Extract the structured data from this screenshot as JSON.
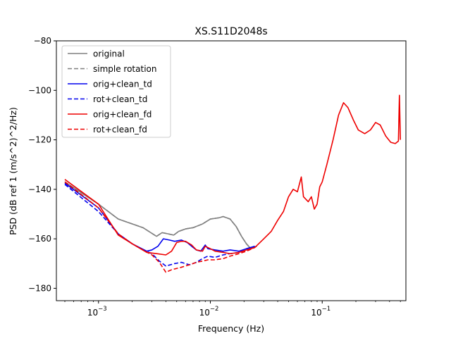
{
  "chart_data": {
    "type": "line",
    "title": "XS.S11D2048s",
    "xlabel": "Frequency (Hz)",
    "ylabel": "PSD (dB ref 1 (m/s^2)^2/Hz)",
    "xscale": "log",
    "xlim": [
      0.00042,
      0.56
    ],
    "ylim": [
      -185,
      -80
    ],
    "x_ticks": [
      {
        "value": 0.001,
        "base": "10",
        "exp": "−3"
      },
      {
        "value": 0.01,
        "base": "10",
        "exp": "−2"
      },
      {
        "value": 0.1,
        "base": "10",
        "exp": "−1"
      }
    ],
    "y_ticks": [
      {
        "value": -80,
        "label": "−80"
      },
      {
        "value": -100,
        "label": "−100"
      },
      {
        "value": -120,
        "label": "−120"
      },
      {
        "value": -140,
        "label": "−140"
      },
      {
        "value": -160,
        "label": "−160"
      },
      {
        "value": -180,
        "label": "−180"
      }
    ],
    "grid": false,
    "legend_position": "top-left",
    "series": [
      {
        "name": "original",
        "color": "#808080",
        "dash": "solid",
        "points": [
          [
            0.0005,
            -137
          ],
          [
            0.001,
            -146
          ],
          [
            0.0015,
            -152
          ],
          [
            0.0025,
            -155.5
          ],
          [
            0.0033,
            -159
          ],
          [
            0.0037,
            -157.5
          ],
          [
            0.0042,
            -158
          ],
          [
            0.0047,
            -158.5
          ],
          [
            0.0052,
            -157
          ],
          [
            0.006,
            -156
          ],
          [
            0.007,
            -155.5
          ],
          [
            0.0085,
            -154
          ],
          [
            0.01,
            -152
          ],
          [
            0.012,
            -151.5
          ],
          [
            0.013,
            -151
          ],
          [
            0.015,
            -152
          ],
          [
            0.017,
            -155
          ],
          [
            0.019,
            -159
          ],
          [
            0.021,
            -162
          ],
          [
            0.023,
            -164
          ],
          [
            0.026,
            -163
          ]
        ]
      },
      {
        "name": "simple rotation",
        "color": "#808080",
        "dash": "dashed",
        "points": [
          [
            0.0005,
            -137
          ],
          [
            0.001,
            -146
          ],
          [
            0.0015,
            -152
          ],
          [
            0.0025,
            -155.5
          ],
          [
            0.0033,
            -159
          ],
          [
            0.0037,
            -157.5
          ],
          [
            0.0042,
            -158
          ],
          [
            0.0047,
            -158.5
          ],
          [
            0.0052,
            -157
          ],
          [
            0.006,
            -156
          ],
          [
            0.007,
            -155.5
          ],
          [
            0.0085,
            -154
          ],
          [
            0.01,
            -152
          ],
          [
            0.012,
            -151.5
          ],
          [
            0.013,
            -151
          ],
          [
            0.015,
            -152
          ],
          [
            0.017,
            -155
          ],
          [
            0.019,
            -159
          ],
          [
            0.021,
            -162
          ],
          [
            0.023,
            -164
          ],
          [
            0.026,
            -163
          ]
        ]
      },
      {
        "name": "orig+clean_td",
        "color": "#0000ee",
        "dash": "solid",
        "points": [
          [
            0.0005,
            -137.5
          ],
          [
            0.001,
            -147.5
          ],
          [
            0.0015,
            -158
          ],
          [
            0.002,
            -162
          ],
          [
            0.0027,
            -165
          ],
          [
            0.003,
            -164.5
          ],
          [
            0.0034,
            -163
          ],
          [
            0.0038,
            -160
          ],
          [
            0.0043,
            -160.5
          ],
          [
            0.0048,
            -161
          ],
          [
            0.0055,
            -160.5
          ],
          [
            0.0062,
            -161.5
          ],
          [
            0.0068,
            -163
          ],
          [
            0.0075,
            -164.5
          ],
          [
            0.0082,
            -165
          ],
          [
            0.009,
            -162.5
          ],
          [
            0.0095,
            -164
          ],
          [
            0.011,
            -164.5
          ],
          [
            0.013,
            -165
          ],
          [
            0.015,
            -164.5
          ],
          [
            0.018,
            -165
          ],
          [
            0.021,
            -164
          ],
          [
            0.025,
            -163
          ]
        ]
      },
      {
        "name": "rot+clean_td",
        "color": "#0000ee",
        "dash": "dashed",
        "points": [
          [
            0.0005,
            -138
          ],
          [
            0.001,
            -149
          ],
          [
            0.0015,
            -158
          ],
          [
            0.002,
            -162
          ],
          [
            0.0025,
            -164.5
          ],
          [
            0.003,
            -166
          ],
          [
            0.0035,
            -169
          ],
          [
            0.004,
            -171
          ],
          [
            0.0048,
            -170
          ],
          [
            0.0055,
            -169.5
          ],
          [
            0.0065,
            -170.5
          ],
          [
            0.0075,
            -169.5
          ],
          [
            0.0085,
            -168
          ],
          [
            0.0095,
            -167
          ],
          [
            0.011,
            -167.5
          ],
          [
            0.013,
            -166.5
          ],
          [
            0.015,
            -166
          ],
          [
            0.018,
            -165.5
          ],
          [
            0.021,
            -164.5
          ],
          [
            0.025,
            -163.5
          ]
        ]
      },
      {
        "name": "orig+clean_fd",
        "color": "#ee0000",
        "dash": "solid",
        "points": [
          [
            0.0005,
            -136
          ],
          [
            0.001,
            -146
          ],
          [
            0.0015,
            -158.5
          ],
          [
            0.002,
            -162
          ],
          [
            0.0027,
            -165.5
          ],
          [
            0.0033,
            -166
          ],
          [
            0.004,
            -166.5
          ],
          [
            0.0045,
            -165
          ],
          [
            0.005,
            -161.5
          ],
          [
            0.0055,
            -161
          ],
          [
            0.006,
            -161
          ],
          [
            0.0068,
            -162.5
          ],
          [
            0.0075,
            -164.5
          ],
          [
            0.0085,
            -165
          ],
          [
            0.009,
            -163
          ],
          [
            0.01,
            -164
          ],
          [
            0.011,
            -165
          ],
          [
            0.013,
            -165.5
          ],
          [
            0.015,
            -166
          ],
          [
            0.018,
            -165.5
          ],
          [
            0.021,
            -164.5
          ],
          [
            0.025,
            -163.5
          ],
          [
            0.03,
            -160
          ],
          [
            0.035,
            -157
          ],
          [
            0.04,
            -152.5
          ],
          [
            0.045,
            -149
          ],
          [
            0.05,
            -143
          ],
          [
            0.055,
            -140
          ],
          [
            0.06,
            -141
          ],
          [
            0.065,
            -135
          ],
          [
            0.068,
            -143
          ],
          [
            0.075,
            -145
          ],
          [
            0.08,
            -143
          ],
          [
            0.085,
            -148
          ],
          [
            0.09,
            -146
          ],
          [
            0.095,
            -139
          ],
          [
            0.1,
            -137
          ],
          [
            0.11,
            -130
          ],
          [
            0.125,
            -120
          ],
          [
            0.14,
            -110
          ],
          [
            0.155,
            -105
          ],
          [
            0.17,
            -107
          ],
          [
            0.19,
            -112
          ],
          [
            0.21,
            -116
          ],
          [
            0.24,
            -117.5
          ],
          [
            0.27,
            -116
          ],
          [
            0.3,
            -113
          ],
          [
            0.33,
            -114
          ],
          [
            0.37,
            -118.5
          ],
          [
            0.41,
            -121
          ],
          [
            0.45,
            -121.5
          ],
          [
            0.48,
            -120.5
          ],
          [
            0.49,
            -102
          ],
          [
            0.5,
            -120
          ]
        ]
      },
      {
        "name": "rot+clean_fd",
        "color": "#ee0000",
        "dash": "dashed",
        "points": [
          [
            0.0005,
            -137
          ],
          [
            0.001,
            -147.5
          ],
          [
            0.0015,
            -158
          ],
          [
            0.002,
            -162
          ],
          [
            0.0025,
            -164.5
          ],
          [
            0.003,
            -166.5
          ],
          [
            0.0035,
            -169.5
          ],
          [
            0.004,
            -173.5
          ],
          [
            0.0045,
            -172.5
          ],
          [
            0.0055,
            -171.5
          ],
          [
            0.0065,
            -170.5
          ],
          [
            0.0075,
            -169.5
          ],
          [
            0.0085,
            -169
          ],
          [
            0.0095,
            -168.5
          ],
          [
            0.011,
            -168.5
          ],
          [
            0.013,
            -168
          ],
          [
            0.015,
            -167
          ],
          [
            0.018,
            -166
          ],
          [
            0.021,
            -165
          ],
          [
            0.025,
            -163.5
          ]
        ]
      }
    ]
  }
}
